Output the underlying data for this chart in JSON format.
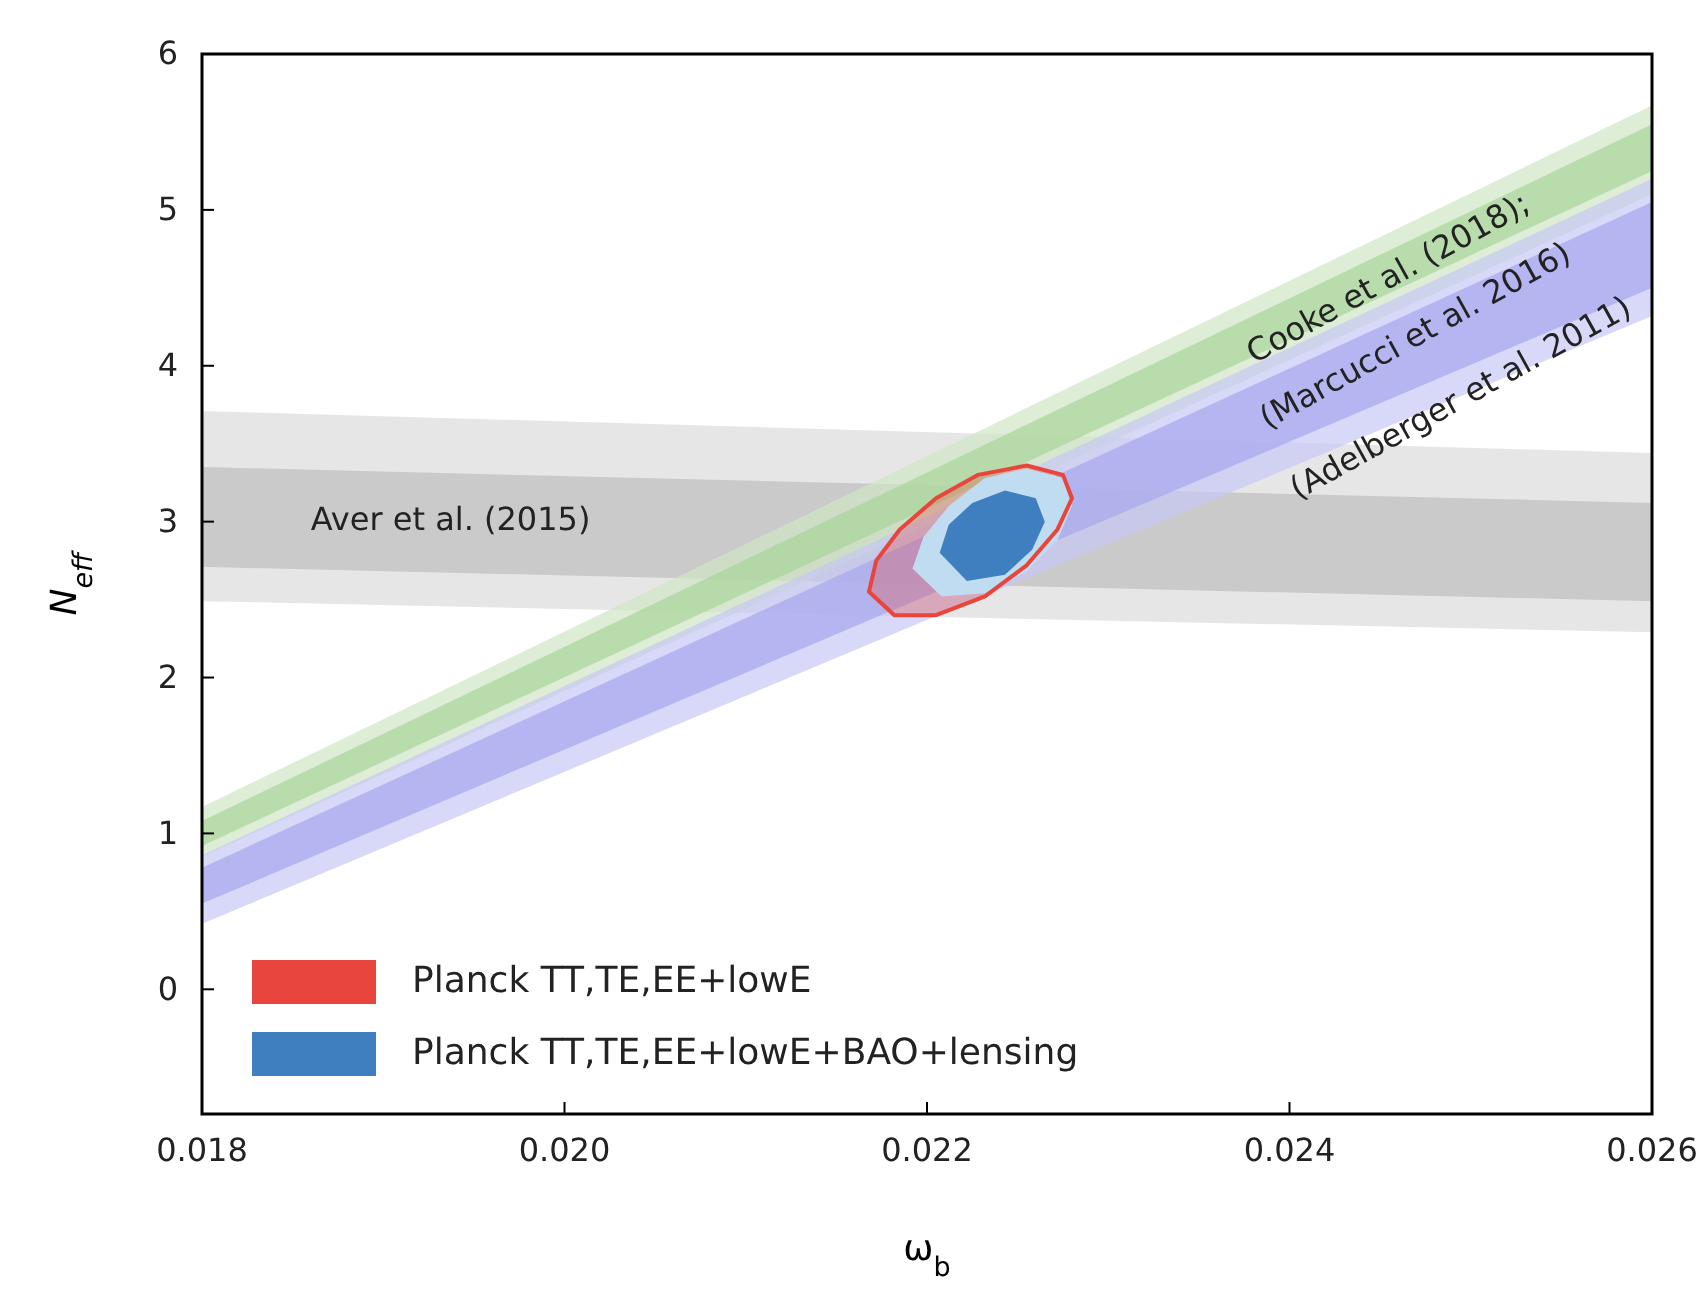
{
  "chart_data": {
    "type": "area",
    "xlabel": "ω$_{b}$",
    "ylabel": "N$_{eff}$",
    "xlim": [
      0.018,
      0.026
    ],
    "ylim": [
      -0.8,
      6
    ],
    "xticks": [
      0.018,
      {
        "value": 0.02,
        "label": "0.020"
      },
      0.022,
      0.024,
      0.026
    ],
    "yticks": [
      0,
      1,
      2,
      3,
      4,
      5,
      6
    ],
    "legend": "bottom left",
    "series": [
      {
        "color": "#dcdcdc",
        "x": [
          0.018,
          0.026
        ],
        "lower": [
          2.49,
          2.29
        ],
        "upper": [
          3.71,
          3.44
        ],
        "values": [
          null,
          null
        ]
      },
      {
        "color": "#bdbdbd",
        "x": [
          0.018,
          0.026
        ],
        "lower": [
          2.71,
          2.49
        ],
        "upper": [
          3.35,
          3.12
        ],
        "values": [
          null,
          null
        ]
      },
      {
        "color": "#cfe6c4",
        "x": [
          0.018,
          0.026
        ],
        "lower": [
          0.85,
          5.1
        ],
        "upper": [
          1.17,
          5.67
        ],
        "values": [
          null,
          null
        ]
      },
      {
        "color": "#a9d49a",
        "x": [
          0.018,
          0.026
        ],
        "lower": [
          0.92,
          5.25
        ],
        "upper": [
          1.08,
          5.55
        ],
        "values": [
          null,
          null
        ]
      },
      {
        "color": "#c8c8f5",
        "x": [
          0.018,
          0.026
        ],
        "lower": [
          0.42,
          4.32
        ],
        "upper": [
          0.86,
          5.2
        ],
        "values": [
          null,
          null
        ]
      },
      {
        "color": "#a6a6ee",
        "x": [
          0.018,
          0.026
        ],
        "lower": [
          0.55,
          4.5
        ],
        "upper": [
          0.78,
          5.05
        ],
        "values": [
          null,
          null
        ]
      },
      {
        "name": "Planck TT,TE,EE+lowE",
        "color": "#e8453c",
        "x": [
          0.02168,
          0.02172,
          0.02185,
          0.02205,
          0.02228,
          0.02255,
          0.02275,
          0.0228,
          0.02272,
          0.02255,
          0.02232,
          0.02205,
          0.02182,
          0.02168
        ],
        "values": [
          2.55,
          2.75,
          2.95,
          3.15,
          3.3,
          3.36,
          3.3,
          3.15,
          2.95,
          2.72,
          2.52,
          2.4,
          2.4,
          2.55
        ]
      },
      {
        "color": "#c0dcf0",
        "x": [
          0.02192,
          0.02198,
          0.02212,
          0.02232,
          0.02255,
          0.02275,
          0.0228,
          0.02272,
          0.02255,
          0.02232,
          0.02208,
          0.02192
        ],
        "values": [
          2.7,
          2.9,
          3.1,
          3.28,
          3.34,
          3.28,
          3.1,
          2.88,
          2.68,
          2.54,
          2.52,
          2.7
        ]
      },
      {
        "name": "Planck TT,TE,EE+lowE+BAO+lensing",
        "color": "#3f7fbf",
        "x": [
          0.02207,
          0.02212,
          0.02225,
          0.02243,
          0.0226,
          0.02265,
          0.02258,
          0.02243,
          0.02222,
          0.02207
        ],
        "values": [
          2.8,
          2.98,
          3.12,
          3.2,
          3.15,
          3.0,
          2.82,
          2.66,
          2.62,
          2.8
        ]
      }
    ],
    "annotations": [
      "Aver et al. (2015)",
      "Cooke et al. (2018);",
      "(Marcucci et al. 2016)",
      "(Adelberger et al. 2011)"
    ]
  }
}
